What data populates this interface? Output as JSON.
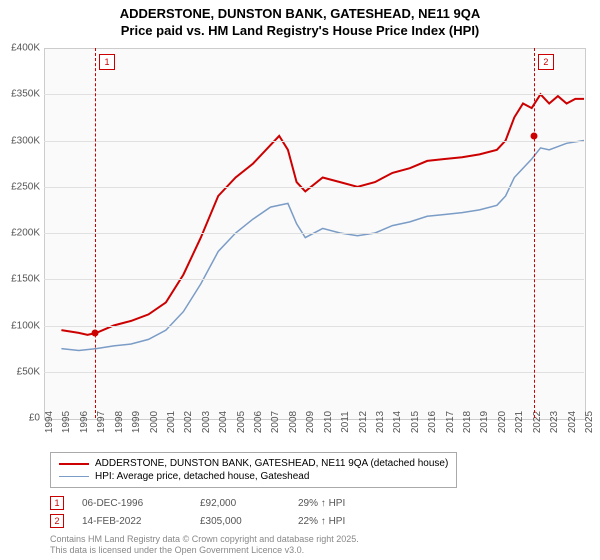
{
  "title_line1": "ADDERSTONE, DUNSTON BANK, GATESHEAD, NE11 9QA",
  "title_line2": "Price paid vs. HM Land Registry's House Price Index (HPI)",
  "chart": {
    "type": "line",
    "background_color": "#fafafa",
    "grid_color": "#e0e0e0",
    "ylim": [
      0,
      400000
    ],
    "ytick_step": 50000,
    "yticks": [
      "£0",
      "£50K",
      "£100K",
      "£150K",
      "£200K",
      "£250K",
      "£300K",
      "£350K",
      "£400K"
    ],
    "xlim": [
      1994,
      2025
    ],
    "xticks": [
      1994,
      1995,
      1996,
      1997,
      1998,
      1999,
      2000,
      2001,
      2002,
      2003,
      2004,
      2005,
      2006,
      2007,
      2008,
      2009,
      2010,
      2011,
      2012,
      2013,
      2014,
      2015,
      2016,
      2017,
      2018,
      2019,
      2020,
      2021,
      2022,
      2023,
      2024,
      2025
    ],
    "series": [
      {
        "name": "price",
        "color": "#cc0000",
        "width": 2,
        "label": "ADDERSTONE, DUNSTON BANK, GATESHEAD, NE11 9QA (detached house)",
        "points": [
          [
            1995,
            95000
          ],
          [
            1996,
            92000
          ],
          [
            1996.5,
            90000
          ],
          [
            1997,
            92000
          ],
          [
            1998,
            100000
          ],
          [
            1999,
            105000
          ],
          [
            2000,
            112000
          ],
          [
            2001,
            125000
          ],
          [
            2002,
            155000
          ],
          [
            2003,
            195000
          ],
          [
            2004,
            240000
          ],
          [
            2005,
            260000
          ],
          [
            2006,
            275000
          ],
          [
            2007,
            295000
          ],
          [
            2007.5,
            305000
          ],
          [
            2008,
            290000
          ],
          [
            2008.5,
            255000
          ],
          [
            2009,
            245000
          ],
          [
            2010,
            260000
          ],
          [
            2011,
            255000
          ],
          [
            2012,
            250000
          ],
          [
            2013,
            255000
          ],
          [
            2014,
            265000
          ],
          [
            2015,
            270000
          ],
          [
            2016,
            278000
          ],
          [
            2017,
            280000
          ],
          [
            2018,
            282000
          ],
          [
            2019,
            285000
          ],
          [
            2020,
            290000
          ],
          [
            2020.5,
            300000
          ],
          [
            2021,
            325000
          ],
          [
            2021.5,
            340000
          ],
          [
            2022,
            335000
          ],
          [
            2022.5,
            350000
          ],
          [
            2023,
            340000
          ],
          [
            2023.5,
            348000
          ],
          [
            2024,
            340000
          ],
          [
            2024.5,
            345000
          ],
          [
            2025,
            345000
          ]
        ]
      },
      {
        "name": "hpi",
        "color": "#7a9cc6",
        "width": 1.5,
        "label": "HPI: Average price, detached house, Gateshead",
        "points": [
          [
            1995,
            75000
          ],
          [
            1996,
            73000
          ],
          [
            1997,
            75000
          ],
          [
            1998,
            78000
          ],
          [
            1999,
            80000
          ],
          [
            2000,
            85000
          ],
          [
            2001,
            95000
          ],
          [
            2002,
            115000
          ],
          [
            2003,
            145000
          ],
          [
            2004,
            180000
          ],
          [
            2005,
            200000
          ],
          [
            2006,
            215000
          ],
          [
            2007,
            228000
          ],
          [
            2008,
            232000
          ],
          [
            2008.5,
            210000
          ],
          [
            2009,
            195000
          ],
          [
            2010,
            205000
          ],
          [
            2011,
            200000
          ],
          [
            2012,
            197000
          ],
          [
            2013,
            200000
          ],
          [
            2014,
            208000
          ],
          [
            2015,
            212000
          ],
          [
            2016,
            218000
          ],
          [
            2017,
            220000
          ],
          [
            2018,
            222000
          ],
          [
            2019,
            225000
          ],
          [
            2020,
            230000
          ],
          [
            2020.5,
            240000
          ],
          [
            2021,
            260000
          ],
          [
            2022,
            280000
          ],
          [
            2022.5,
            292000
          ],
          [
            2023,
            290000
          ],
          [
            2024,
            297000
          ],
          [
            2025,
            300000
          ]
        ]
      }
    ],
    "markers": [
      {
        "n": "1",
        "x": 1996.93,
        "y": 92000,
        "color": "#cc0000"
      },
      {
        "n": "2",
        "x": 2022.12,
        "y": 305000,
        "color": "#cc0000"
      }
    ]
  },
  "legend": {
    "items": [
      {
        "color": "#cc0000",
        "width": 2
      },
      {
        "color": "#7a9cc6",
        "width": 1.5
      }
    ]
  },
  "notes": [
    {
      "n": "1",
      "color": "#cc0000",
      "date": "06-DEC-1996",
      "price": "£92,000",
      "pct": "29% ↑ HPI"
    },
    {
      "n": "2",
      "color": "#cc0000",
      "date": "14-FEB-2022",
      "price": "£305,000",
      "pct": "22% ↑ HPI"
    }
  ],
  "copyright_line1": "Contains HM Land Registry data © Crown copyright and database right 2025.",
  "copyright_line2": "This data is licensed under the Open Government Licence v3.0."
}
